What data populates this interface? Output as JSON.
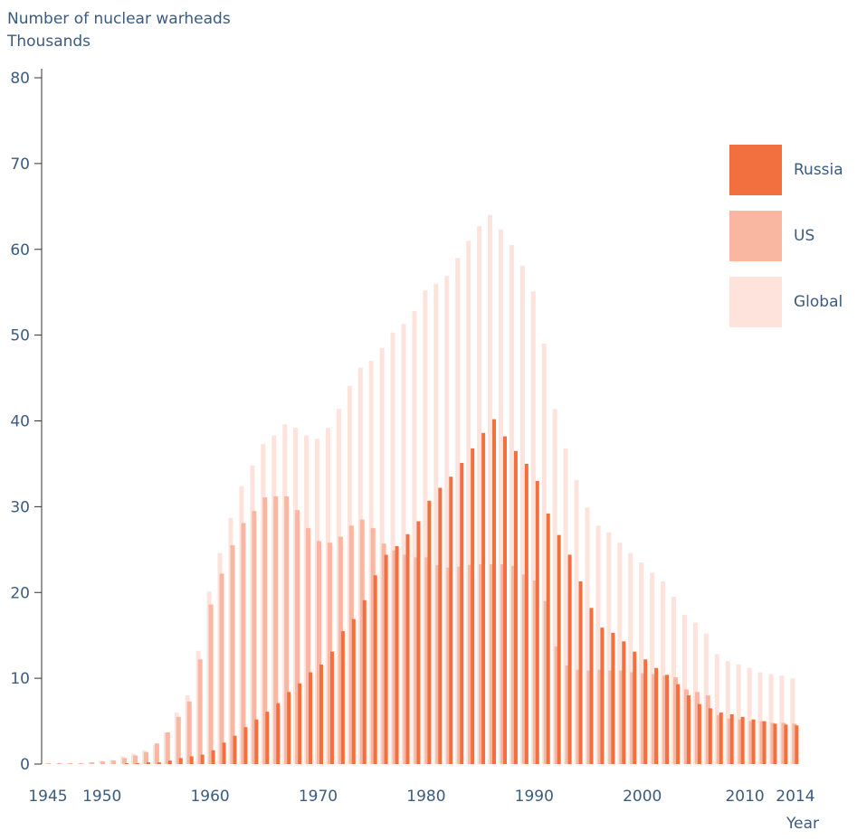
{
  "chart_data": {
    "type": "bar",
    "ylabel_line1": "Number of nuclear warheads",
    "ylabel_line2": "Thousands",
    "xlabel": "Year",
    "ylim": [
      0,
      80
    ],
    "y_ticks": [
      "0",
      "10",
      "20",
      "30",
      "40",
      "50",
      "60",
      "70",
      "80"
    ],
    "x_tick_labels": [
      "1945",
      "1950",
      "1960",
      "1970",
      "1980",
      "1990",
      "2000",
      "2010",
      "2014"
    ],
    "x": [
      1945,
      1946,
      1947,
      1948,
      1949,
      1950,
      1951,
      1952,
      1953,
      1954,
      1955,
      1956,
      1957,
      1958,
      1959,
      1960,
      1961,
      1962,
      1963,
      1964,
      1965,
      1966,
      1967,
      1968,
      1969,
      1970,
      1971,
      1972,
      1973,
      1974,
      1975,
      1976,
      1977,
      1978,
      1979,
      1980,
      1981,
      1982,
      1983,
      1984,
      1985,
      1986,
      1987,
      1988,
      1989,
      1990,
      1991,
      1992,
      1993,
      1994,
      1995,
      1996,
      1997,
      1998,
      1999,
      2000,
      2001,
      2002,
      2003,
      2004,
      2005,
      2006,
      2007,
      2008,
      2009,
      2010,
      2011,
      2012,
      2013,
      2014
    ],
    "series": [
      {
        "name": "Global",
        "color": "#fde3dc",
        "values": [
          0.1,
          0.1,
          0.1,
          0.1,
          0.2,
          0.4,
          0.5,
          0.9,
          1.2,
          1.6,
          2.2,
          3.7,
          6.0,
          8.0,
          13.2,
          20.1,
          24.6,
          28.7,
          32.4,
          34.8,
          37.3,
          38.3,
          39.6,
          39.2,
          38.3,
          37.9,
          39.2,
          41.4,
          44.1,
          46.2,
          47.0,
          48.5,
          50.3,
          51.3,
          52.8,
          55.2,
          56.0,
          56.9,
          59.0,
          61.0,
          62.7,
          64.0,
          62.3,
          60.5,
          58.1,
          55.1,
          49.0,
          41.4,
          36.8,
          33.1,
          29.9,
          27.8,
          27.0,
          25.8,
          24.6,
          23.5,
          22.3,
          21.3,
          19.5,
          17.4,
          16.5,
          15.2,
          12.8,
          12.0,
          11.6,
          11.2,
          10.7,
          10.5,
          10.3,
          10.0
        ]
      },
      {
        "name": "US",
        "color": "#f9b6a0",
        "values": [
          0.1,
          0.1,
          0.1,
          0.1,
          0.2,
          0.3,
          0.4,
          0.7,
          1.0,
          1.4,
          2.4,
          3.7,
          5.5,
          7.3,
          12.2,
          18.6,
          22.2,
          25.5,
          28.1,
          29.5,
          31.1,
          31.2,
          31.2,
          29.6,
          27.5,
          26.0,
          25.8,
          26.5,
          27.8,
          28.5,
          27.5,
          25.7,
          24.9,
          24.4,
          24.1,
          24.1,
          23.2,
          22.9,
          23.0,
          23.2,
          23.3,
          23.3,
          23.3,
          23.1,
          22.1,
          21.4,
          19.0,
          13.7,
          11.5,
          11.0,
          10.9,
          11.0,
          10.9,
          10.9,
          10.7,
          10.6,
          10.5,
          10.3,
          10.1,
          8.7,
          8.4,
          8.0,
          5.7,
          5.3,
          5.2,
          5.0,
          5.0,
          4.8,
          4.8,
          4.7
        ]
      },
      {
        "name": "Russia",
        "color": "#f2703f",
        "values": [
          0,
          0,
          0,
          0,
          0,
          0,
          0,
          0.1,
          0.1,
          0.2,
          0.2,
          0.4,
          0.7,
          0.9,
          1.1,
          1.6,
          2.5,
          3.3,
          4.3,
          5.2,
          6.1,
          7.1,
          8.4,
          9.4,
          10.7,
          11.6,
          13.1,
          15.5,
          16.9,
          19.1,
          22.0,
          24.4,
          25.4,
          26.8,
          28.3,
          30.7,
          32.2,
          33.5,
          35.1,
          36.8,
          38.6,
          40.2,
          38.2,
          36.5,
          35.0,
          33.0,
          29.2,
          26.7,
          24.4,
          21.3,
          18.2,
          15.9,
          15.3,
          14.3,
          13.1,
          12.2,
          11.2,
          10.4,
          9.3,
          8.0,
          7.0,
          6.5,
          6.0,
          5.8,
          5.5,
          5.2,
          5.0,
          4.7,
          4.6,
          4.5
        ]
      }
    ],
    "legend": [
      {
        "label": "Russia",
        "color": "#f2703f"
      },
      {
        "label": "US",
        "color": "#f9b6a0"
      },
      {
        "label": "Global",
        "color": "#fde3dc"
      }
    ],
    "legend_position": "right"
  }
}
